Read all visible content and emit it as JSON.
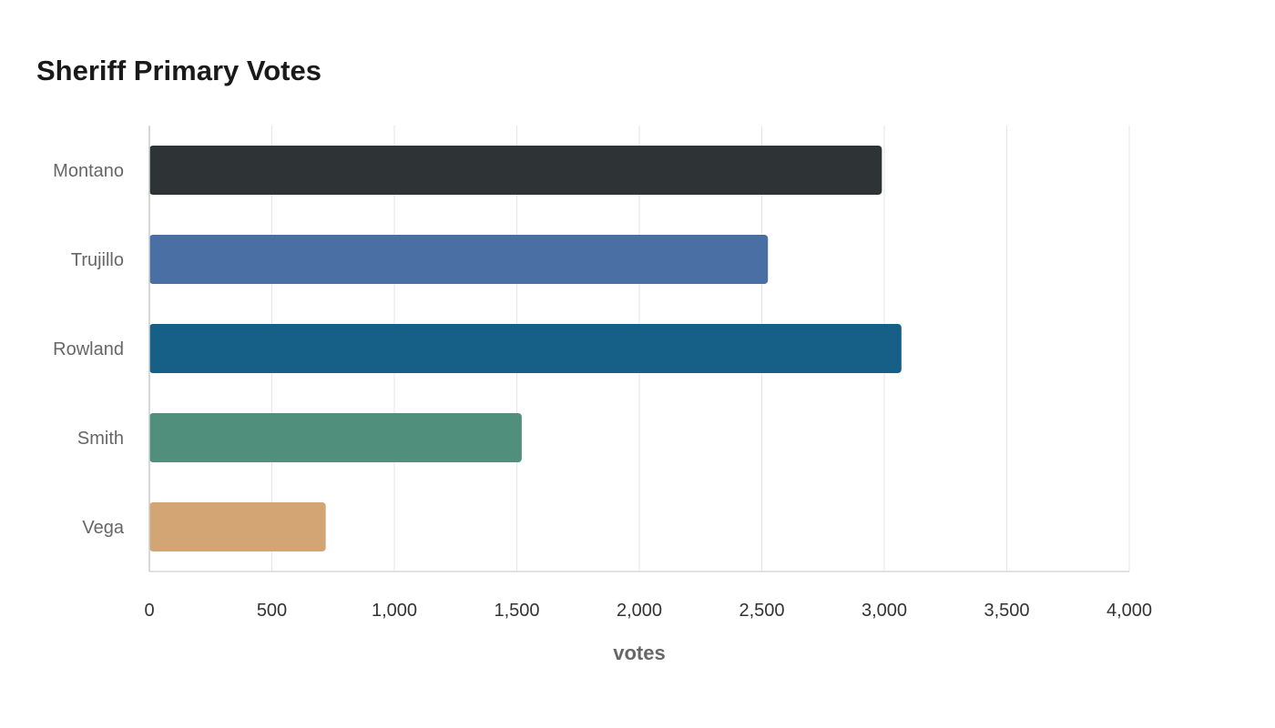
{
  "chart_data": {
    "type": "bar",
    "orientation": "horizontal",
    "title": "Sheriff Primary Votes",
    "xlabel": "votes",
    "ylabel": "",
    "categories": [
      "Montano",
      "Trujillo",
      "Rowland",
      "Smith",
      "Vega"
    ],
    "values": [
      2990,
      2525,
      3070,
      1520,
      720
    ],
    "colors": [
      "#2e3436",
      "#4a6fa5",
      "#166088",
      "#4f8f7b",
      "#d4a574"
    ],
    "xlim": [
      0,
      4000
    ],
    "xticks": [
      0,
      500,
      1000,
      1500,
      2000,
      2500,
      3000,
      3500,
      4000
    ],
    "xtick_labels": [
      "0",
      "500",
      "1,000",
      "1,500",
      "2,000",
      "2,500",
      "3,000",
      "3,500",
      "4,000"
    ],
    "grid": true,
    "legend": "none"
  }
}
